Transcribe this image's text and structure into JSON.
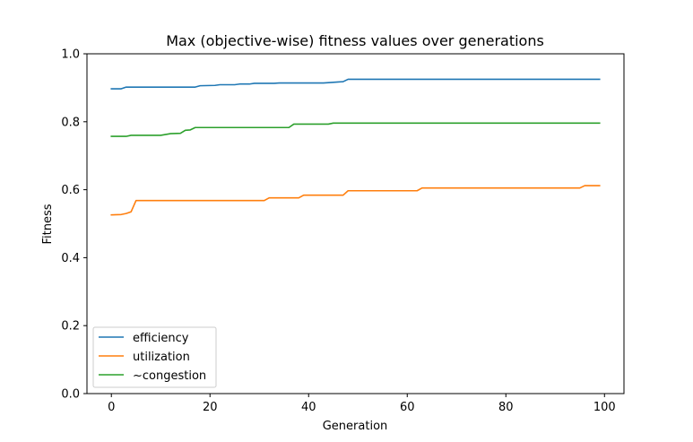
{
  "chart_data": {
    "type": "line",
    "title": "Max (objective-wise) fitness values over generations",
    "xlabel": "Generation",
    "ylabel": "Fitness",
    "xlim": [
      -4.95,
      103.95
    ],
    "ylim": [
      0.0,
      1.0
    ],
    "xticks": [
      0,
      20,
      40,
      60,
      80,
      100
    ],
    "yticks": [
      0.0,
      0.2,
      0.4,
      0.6,
      0.8,
      1.0
    ],
    "xtick_labels": [
      "0",
      "20",
      "40",
      "60",
      "80",
      "100"
    ],
    "ytick_labels": [
      "0.0",
      "0.2",
      "0.4",
      "0.6",
      "0.8",
      "1.0"
    ],
    "grid": false,
    "legend_position": "lower-left",
    "series": [
      {
        "name": "efficiency",
        "color": "#1f77b4",
        "points": [
          [
            0,
            0.897
          ],
          [
            2,
            0.897
          ],
          [
            3,
            0.902
          ],
          [
            9,
            0.902
          ],
          [
            17,
            0.902
          ],
          [
            18,
            0.906
          ],
          [
            21,
            0.907
          ],
          [
            22,
            0.909
          ],
          [
            25,
            0.909
          ],
          [
            26,
            0.911
          ],
          [
            28,
            0.911
          ],
          [
            29,
            0.913
          ],
          [
            33,
            0.913
          ],
          [
            34,
            0.914
          ],
          [
            43,
            0.914
          ],
          [
            44,
            0.915
          ],
          [
            46,
            0.917
          ],
          [
            47,
            0.918
          ],
          [
            48,
            0.925
          ],
          [
            99,
            0.925
          ]
        ]
      },
      {
        "name": "utilization",
        "color": "#ff7f0e",
        "points": [
          [
            0,
            0.526
          ],
          [
            2,
            0.527
          ],
          [
            3,
            0.53
          ],
          [
            4,
            0.535
          ],
          [
            5,
            0.568
          ],
          [
            31,
            0.568
          ],
          [
            32,
            0.576
          ],
          [
            38,
            0.576
          ],
          [
            39,
            0.584
          ],
          [
            47,
            0.584
          ],
          [
            48,
            0.597
          ],
          [
            62,
            0.597
          ],
          [
            63,
            0.605
          ],
          [
            95,
            0.605
          ],
          [
            96,
            0.612
          ],
          [
            99,
            0.612
          ]
        ]
      },
      {
        "name": "~congestion",
        "color": "#2ca02c",
        "points": [
          [
            0,
            0.757
          ],
          [
            3,
            0.757
          ],
          [
            4,
            0.76
          ],
          [
            10,
            0.76
          ],
          [
            12,
            0.765
          ],
          [
            14,
            0.766
          ],
          [
            15,
            0.775
          ],
          [
            16,
            0.776
          ],
          [
            17,
            0.783
          ],
          [
            36,
            0.783
          ],
          [
            37,
            0.793
          ],
          [
            44,
            0.793
          ],
          [
            45,
            0.796
          ],
          [
            99,
            0.796
          ]
        ]
      }
    ]
  }
}
